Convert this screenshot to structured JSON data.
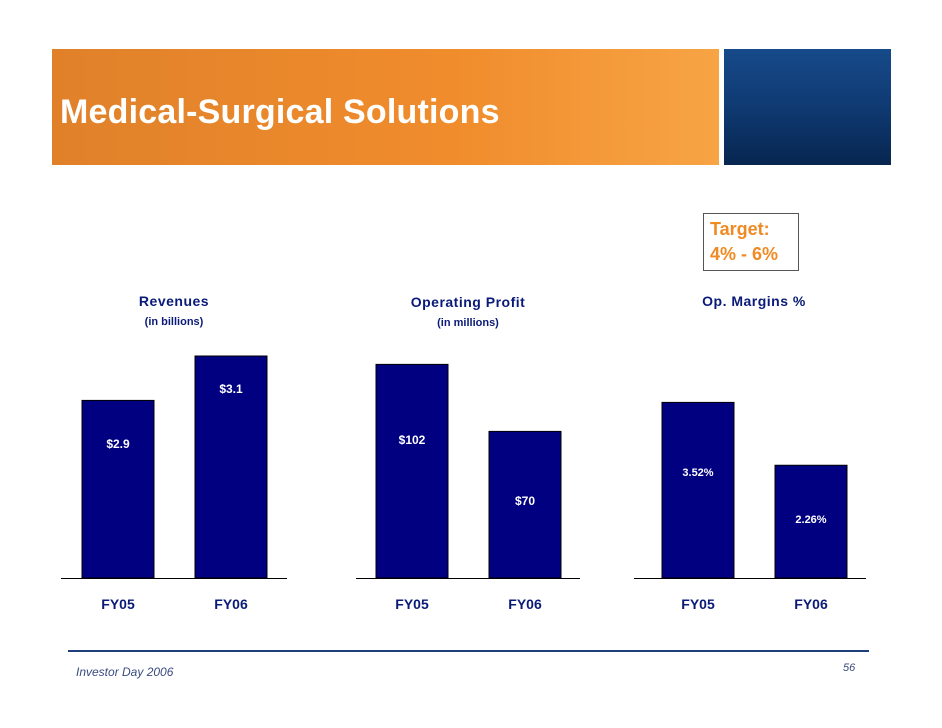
{
  "header": {
    "title": "Medical-Surgical Solutions"
  },
  "target": {
    "line1": "Target:",
    "line2": "4% - 6%"
  },
  "chart_data": [
    {
      "type": "bar",
      "title": "Revenues",
      "subtitle": "(in billions)",
      "categories": [
        "FY05",
        "FY06"
      ],
      "values": [
        2.9,
        3.1
      ],
      "data_labels": [
        "$2.9",
        "$3.1"
      ],
      "ylim": [
        2.1,
        3.1
      ],
      "color": "#000080"
    },
    {
      "type": "bar",
      "title": "Operating Profit",
      "subtitle": "(in millions)",
      "categories": [
        "FY05",
        "FY06"
      ],
      "values": [
        102,
        70
      ],
      "data_labels": [
        "$102",
        "$70"
      ],
      "ylim": [
        0,
        106
      ],
      "color": "#000080"
    },
    {
      "type": "bar",
      "title": "Op. Margins %",
      "subtitle": "",
      "categories": [
        "FY05",
        "FY06"
      ],
      "values": [
        3.52,
        2.26
      ],
      "data_labels": [
        "3.52%",
        "2.26%"
      ],
      "ylim": [
        0,
        4.45
      ],
      "color": "#000080"
    }
  ],
  "footer": {
    "text": "Investor Day 2006",
    "page": "56"
  }
}
